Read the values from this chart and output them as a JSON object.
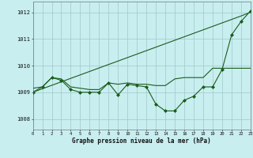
{
  "title": "Graphe pression niveau de la mer (hPa)",
  "bg_color": "#c8eef0",
  "grid_color": "#a0c8c8",
  "line_color": "#1a5c1a",
  "xlim": [
    0,
    23
  ],
  "ylim": [
    1007.6,
    1012.4
  ],
  "yticks": [
    1008,
    1009,
    1010,
    1011,
    1012
  ],
  "xticks": [
    0,
    1,
    2,
    3,
    4,
    5,
    6,
    7,
    8,
    9,
    10,
    11,
    12,
    13,
    14,
    15,
    16,
    17,
    18,
    19,
    20,
    21,
    22,
    23
  ],
  "y_trend": [
    1009.0,
    1009.13,
    1009.26,
    1009.39,
    1009.52,
    1009.65,
    1009.78,
    1009.91,
    1010.04,
    1010.17,
    1010.3,
    1010.43,
    1010.56,
    1010.69,
    1010.82,
    1010.95,
    1011.08,
    1011.21,
    1011.34,
    1011.47,
    1011.6,
    1011.73,
    1011.86,
    1012.0
  ],
  "y_flat": [
    1009.15,
    1009.2,
    1009.55,
    1009.5,
    1009.2,
    1009.15,
    1009.1,
    1009.1,
    1009.35,
    1009.3,
    1009.35,
    1009.3,
    1009.3,
    1009.25,
    1009.25,
    1009.5,
    1009.55,
    1009.55,
    1009.55,
    1009.9,
    1009.9,
    1009.9,
    1009.9,
    1009.9
  ],
  "y_obs": [
    1009.0,
    1009.2,
    1009.55,
    1009.45,
    1009.1,
    1009.0,
    1009.0,
    1009.0,
    1009.35,
    1008.9,
    1009.3,
    1009.25,
    1009.2,
    1008.55,
    1008.3,
    1008.3,
    1008.7,
    1008.85,
    1009.2,
    1009.2,
    1009.85,
    1011.15,
    1011.65,
    1012.05
  ]
}
